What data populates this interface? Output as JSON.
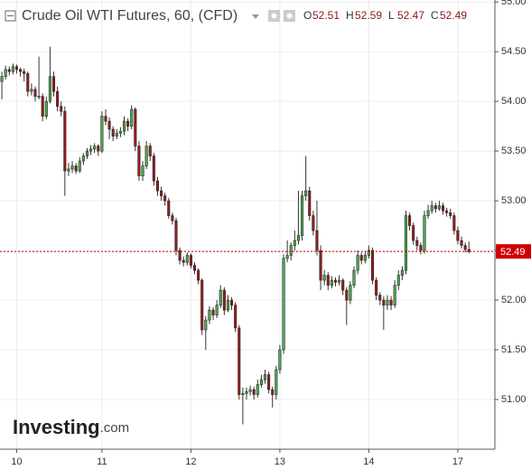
{
  "chart_data": {
    "type": "candlestick",
    "title": "Crude Oil WTI Futures, 60, (CFD)",
    "ohlc_labels": [
      "O",
      "H",
      "L",
      "C"
    ],
    "ohlc_values": [
      52.51,
      52.59,
      52.47,
      52.49
    ],
    "price_tag": 52.49,
    "watermark": {
      "brand": "Investing",
      "suffix": ".com"
    },
    "up_color": "#4caf50",
    "down_color": "#9b1c1c",
    "grid": true,
    "ylim": [
      50.5,
      55.02
    ],
    "yticks": [
      {
        "value": 51,
        "label": "51.00"
      },
      {
        "value": 51.5,
        "label": "51.50"
      },
      {
        "value": 52,
        "label": "52.00"
      },
      {
        "value": 52.5,
        "label": "52.50"
      },
      {
        "value": 53,
        "label": "53.00"
      },
      {
        "value": 53.5,
        "label": "53.50"
      },
      {
        "value": 54,
        "label": "54.00"
      },
      {
        "value": 54.5,
        "label": "54.50"
      },
      {
        "value": 55,
        "label": "55.00"
      }
    ],
    "xlim": [
      -0.5,
      133
    ],
    "xticks": [
      {
        "value": 4,
        "label": "10"
      },
      {
        "value": 27,
        "label": "11"
      },
      {
        "value": 51,
        "label": "12"
      },
      {
        "value": 75,
        "label": "13"
      },
      {
        "value": 99,
        "label": "14"
      },
      {
        "value": 123,
        "label": "17"
      }
    ],
    "candles": [
      [
        54.2,
        54.3,
        54.02,
        54.25
      ],
      [
        54.25,
        54.36,
        54.22,
        54.32
      ],
      [
        54.32,
        54.35,
        54.26,
        54.3
      ],
      [
        54.3,
        54.38,
        54.27,
        54.35
      ],
      [
        54.35,
        54.37,
        54.28,
        54.32
      ],
      [
        54.32,
        54.34,
        54.25,
        54.3
      ],
      [
        54.3,
        54.33,
        54.2,
        54.28
      ],
      [
        54.28,
        54.3,
        54.05,
        54.1
      ],
      [
        54.1,
        54.18,
        54.06,
        54.12
      ],
      [
        54.12,
        54.15,
        54.0,
        54.05
      ],
      [
        54.05,
        54.45,
        54.02,
        54.05
      ],
      [
        54.05,
        54.08,
        53.8,
        53.85
      ],
      [
        53.85,
        54.05,
        53.82,
        54.0
      ],
      [
        54.0,
        54.55,
        53.98,
        54.25
      ],
      [
        54.25,
        54.3,
        54.05,
        54.1
      ],
      [
        54.1,
        54.15,
        53.9,
        53.95
      ],
      [
        53.95,
        54.0,
        53.85,
        53.9
      ],
      [
        53.9,
        53.95,
        53.05,
        53.3
      ],
      [
        53.3,
        53.38,
        53.25,
        53.32
      ],
      [
        53.32,
        53.4,
        53.28,
        53.35
      ],
      [
        53.35,
        53.38,
        53.27,
        53.3
      ],
      [
        53.3,
        53.44,
        53.28,
        53.4
      ],
      [
        53.4,
        53.48,
        53.36,
        53.45
      ],
      [
        53.45,
        53.53,
        53.42,
        53.5
      ],
      [
        53.5,
        53.56,
        53.46,
        53.52
      ],
      [
        53.52,
        53.58,
        53.48,
        53.55
      ],
      [
        53.55,
        53.57,
        53.45,
        53.5
      ],
      [
        53.5,
        53.9,
        53.48,
        53.85
      ],
      [
        53.85,
        53.92,
        53.76,
        53.8
      ],
      [
        53.8,
        53.84,
        53.62,
        53.72
      ],
      [
        53.72,
        53.75,
        53.6,
        53.65
      ],
      [
        53.65,
        53.72,
        53.62,
        53.68
      ],
      [
        53.68,
        53.74,
        53.64,
        53.7
      ],
      [
        53.7,
        53.85,
        53.66,
        53.8
      ],
      [
        53.8,
        53.83,
        53.7,
        53.75
      ],
      [
        53.75,
        53.96,
        53.72,
        53.92
      ],
      [
        53.92,
        53.94,
        53.5,
        53.55
      ],
      [
        53.55,
        53.6,
        53.2,
        53.25
      ],
      [
        53.25,
        53.4,
        53.2,
        53.35
      ],
      [
        53.35,
        53.6,
        53.32,
        53.55
      ],
      [
        53.55,
        53.58,
        53.4,
        53.45
      ],
      [
        53.45,
        53.48,
        53.15,
        53.2
      ],
      [
        53.2,
        53.24,
        53.05,
        53.1
      ],
      [
        53.1,
        53.14,
        53.0,
        53.05
      ],
      [
        53.05,
        53.08,
        52.95,
        53.0
      ],
      [
        53.0,
        53.03,
        52.82,
        52.85
      ],
      [
        52.85,
        52.88,
        52.76,
        52.8
      ],
      [
        52.8,
        52.83,
        52.45,
        52.5
      ],
      [
        52.5,
        52.53,
        52.36,
        52.4
      ],
      [
        52.4,
        52.44,
        52.34,
        52.38
      ],
      [
        52.38,
        52.48,
        52.35,
        52.45
      ],
      [
        52.45,
        52.47,
        52.32,
        52.35
      ],
      [
        52.35,
        52.38,
        52.26,
        52.3
      ],
      [
        52.3,
        52.32,
        52.16,
        52.2
      ],
      [
        52.2,
        52.22,
        51.65,
        51.7
      ],
      [
        51.7,
        51.84,
        51.5,
        51.8
      ],
      [
        51.8,
        51.94,
        51.76,
        51.9
      ],
      [
        51.9,
        51.93,
        51.8,
        51.85
      ],
      [
        51.85,
        52.0,
        51.82,
        51.95
      ],
      [
        51.95,
        52.15,
        51.92,
        52.1
      ],
      [
        52.1,
        52.13,
        51.85,
        51.9
      ],
      [
        51.9,
        52.05,
        51.88,
        52.0
      ],
      [
        52.0,
        52.03,
        51.9,
        51.95
      ],
      [
        51.95,
        51.98,
        51.68,
        51.72
      ],
      [
        51.72,
        51.75,
        51.0,
        51.05
      ],
      [
        51.05,
        51.12,
        50.75,
        51.06
      ],
      [
        51.06,
        51.12,
        51.0,
        51.08
      ],
      [
        51.08,
        51.14,
        51.04,
        51.1
      ],
      [
        51.1,
        51.13,
        51.0,
        51.05
      ],
      [
        51.05,
        51.2,
        51.02,
        51.15
      ],
      [
        51.15,
        51.25,
        51.12,
        51.2
      ],
      [
        51.2,
        51.3,
        51.16,
        51.25
      ],
      [
        51.25,
        51.28,
        51.06,
        51.1
      ],
      [
        51.1,
        51.13,
        50.92,
        51.05
      ],
      [
        51.05,
        51.34,
        51.0,
        51.3
      ],
      [
        51.3,
        51.55,
        51.26,
        51.5
      ],
      [
        51.5,
        52.46,
        51.46,
        52.42
      ],
      [
        52.42,
        52.6,
        52.38,
        52.45
      ],
      [
        52.45,
        52.58,
        52.4,
        52.55
      ],
      [
        52.55,
        52.7,
        52.5,
        52.6
      ],
      [
        52.6,
        53.1,
        52.56,
        52.65
      ],
      [
        52.65,
        53.1,
        52.6,
        53.05
      ],
      [
        53.05,
        53.45,
        53.0,
        53.1
      ],
      [
        53.1,
        53.14,
        52.8,
        52.85
      ],
      [
        52.85,
        52.9,
        52.65,
        52.7
      ],
      [
        52.7,
        53.0,
        52.45,
        52.5
      ],
      [
        52.5,
        52.55,
        52.1,
        52.2
      ],
      [
        52.2,
        52.3,
        52.15,
        52.25
      ],
      [
        52.25,
        52.28,
        52.1,
        52.15
      ],
      [
        52.15,
        52.24,
        52.12,
        52.2
      ],
      [
        52.2,
        52.23,
        52.14,
        52.18
      ],
      [
        52.18,
        52.25,
        52.15,
        52.2
      ],
      [
        52.2,
        52.22,
        52.05,
        52.1
      ],
      [
        52.1,
        52.13,
        51.75,
        52.0
      ],
      [
        52.0,
        52.19,
        51.96,
        52.15
      ],
      [
        52.15,
        52.34,
        52.12,
        52.3
      ],
      [
        52.3,
        52.5,
        52.26,
        52.45
      ],
      [
        52.45,
        52.48,
        52.36,
        52.4
      ],
      [
        52.4,
        52.49,
        52.37,
        52.45
      ],
      [
        52.45,
        52.55,
        52.42,
        52.5
      ],
      [
        52.5,
        52.53,
        52.16,
        52.2
      ],
      [
        52.2,
        52.23,
        52.0,
        52.05
      ],
      [
        52.05,
        52.08,
        51.95,
        52.0
      ],
      [
        52.0,
        52.04,
        51.7,
        51.95
      ],
      [
        51.95,
        52.05,
        51.9,
        52.0
      ],
      [
        52.0,
        52.04,
        51.9,
        51.95
      ],
      [
        51.95,
        52.2,
        51.92,
        52.15
      ],
      [
        52.15,
        52.3,
        52.1,
        52.25
      ],
      [
        52.25,
        52.34,
        52.2,
        52.3
      ],
      [
        52.3,
        52.9,
        52.26,
        52.85
      ],
      [
        52.85,
        52.88,
        52.7,
        52.75
      ],
      [
        52.75,
        52.78,
        52.56,
        52.6
      ],
      [
        52.6,
        52.64,
        52.5,
        52.55
      ],
      [
        52.55,
        52.58,
        52.46,
        52.5
      ],
      [
        52.5,
        52.9,
        52.47,
        52.85
      ],
      [
        52.85,
        52.96,
        52.82,
        52.9
      ],
      [
        52.9,
        53.0,
        52.87,
        52.95
      ],
      [
        52.95,
        52.98,
        52.88,
        52.92
      ],
      [
        52.92,
        53.0,
        52.9,
        52.95
      ],
      [
        52.95,
        52.98,
        52.86,
        52.9
      ],
      [
        52.9,
        52.93,
        52.84,
        52.88
      ],
      [
        52.88,
        52.92,
        52.82,
        52.85
      ],
      [
        52.85,
        52.88,
        52.66,
        52.7
      ],
      [
        52.7,
        52.74,
        52.56,
        52.6
      ],
      [
        52.6,
        52.64,
        52.52,
        52.55
      ],
      [
        52.55,
        52.58,
        52.48,
        52.51
      ],
      [
        52.51,
        52.59,
        52.47,
        52.49
      ]
    ]
  }
}
